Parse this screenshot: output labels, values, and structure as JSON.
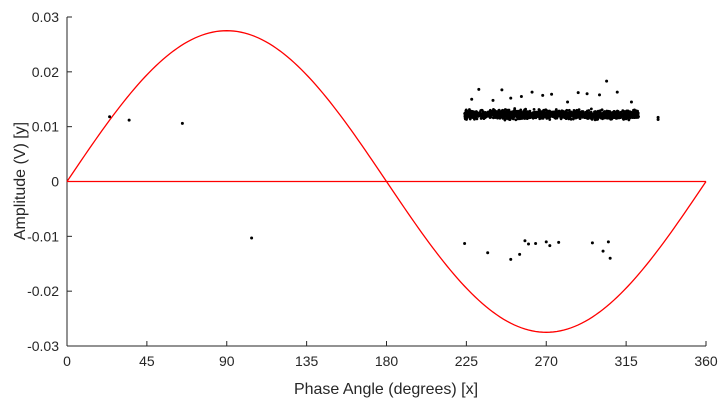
{
  "chart_data": {
    "type": "scatter",
    "xlabel": "Phase Angle (degrees)  [x]",
    "ylabel": "Amplitude  (V)  [y]",
    "xlim": [
      0,
      360
    ],
    "ylim": [
      -0.03,
      0.03
    ],
    "xticks": [
      "0",
      "45",
      "90",
      "135",
      "180",
      "225",
      "270",
      "315",
      "360"
    ],
    "yticks": [
      "0.03",
      "0.02",
      "0.01",
      "0",
      "-0.01",
      "-0.02",
      "-0.03"
    ],
    "grid": false,
    "legend": "none",
    "reference_curves": [
      {
        "type": "sine",
        "amplitude": 0.0275,
        "period_degrees": 360,
        "color": "#ff0000"
      },
      {
        "type": "horizontal",
        "y": 0,
        "color": "#ff0000"
      }
    ],
    "series": [
      {
        "color": "#000000",
        "points": [
          [
            24,
            0.0118
          ],
          [
            35,
            0.0112
          ],
          [
            65,
            0.0106
          ],
          [
            104,
            -0.0103
          ],
          [
            224,
            -0.0113
          ],
          [
            237,
            -0.013
          ],
          [
            250,
            -0.0142
          ],
          [
            255,
            -0.0133
          ],
          [
            258,
            -0.0108
          ],
          [
            260,
            -0.0114
          ],
          [
            264,
            -0.0113
          ],
          [
            270,
            -0.011
          ],
          [
            272,
            -0.0117
          ],
          [
            277,
            -0.0111
          ],
          [
            296,
            -0.0112
          ],
          [
            302,
            -0.0127
          ],
          [
            305,
            -0.011
          ],
          [
            306,
            -0.014
          ],
          [
            333,
            0.0113
          ],
          [
            333,
            0.0117
          ],
          [
            232,
            0.0168
          ],
          [
            245,
            0.0167
          ],
          [
            256,
            0.0155
          ],
          [
            262,
            0.0163
          ],
          [
            268,
            0.0157
          ],
          [
            273,
            0.0159
          ],
          [
            282,
            0.0145
          ],
          [
            288,
            0.0162
          ],
          [
            293,
            0.016
          ],
          [
            300,
            0.0158
          ],
          [
            304,
            0.0183
          ],
          [
            310,
            0.0163
          ],
          [
            318,
            0.0145
          ],
          [
            228,
            0.015
          ],
          [
            240,
            0.0148
          ],
          [
            250,
            0.0152
          ]
        ],
        "clusters": [
          {
            "x_range": [
              224,
              322
            ],
            "y_center": 0.0122,
            "y_spread": 0.0013,
            "count": 1400
          }
        ]
      }
    ]
  }
}
